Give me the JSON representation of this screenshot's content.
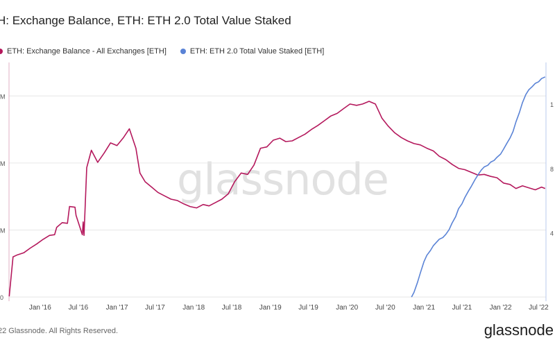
{
  "title": "H: Exchange Balance, ETH: ETH 2.0 Total Value Staked",
  "legend": [
    {
      "label": "ETH: Exchange Balance - All Exchanges [ETH]",
      "color": "#b4185c"
    },
    {
      "label": "ETH: ETH 2.0 Total Value Staked [ETH]",
      "color": "#5a83d6"
    }
  ],
  "watermark": "glassnode",
  "footer": {
    "copyright": "22 Glassnode. All Rights Reserved.",
    "logo": "glassnode"
  },
  "colors": {
    "exchange": "#b4185c",
    "staked": "#5a83d6",
    "grid": "#e6e6e6"
  },
  "chart_data": {
    "type": "line",
    "x_ticks": [
      "Jan '16",
      "Jul '16",
      "Jan '17",
      "Jul '17",
      "Jan '18",
      "Jul '18",
      "Jan '19",
      "Jul '19",
      "Jan '20",
      "Jul '20",
      "Jan '21",
      "Jul '21",
      "Jan '22",
      "Jul '22"
    ],
    "y_left_ticks": [
      "0",
      "M",
      "M",
      "M"
    ],
    "y_right_ticks": [
      "4",
      "8",
      "1"
    ],
    "grid": true,
    "legend_position": "top-left",
    "series": [
      {
        "name": "ETH: Exchange Balance - All Exchanges [ETH]",
        "x": [
          "2015-08-07",
          "2015-08-25",
          "2015-09-15",
          "2015-10-15",
          "2015-11-15",
          "2015-12-15",
          "2016-01-15",
          "2016-02-15",
          "2016-03-10",
          "2016-03-20",
          "2016-04-15",
          "2016-05-10",
          "2016-05-20",
          "2016-06-15",
          "2016-06-20",
          "2016-07-20",
          "2016-07-24",
          "2016-07-28",
          "2016-08-10",
          "2016-09-01",
          "2016-10-01",
          "2016-11-01",
          "2016-12-01",
          "2017-01-01",
          "2017-02-01",
          "2017-03-01",
          "2017-04-01",
          "2017-04-20",
          "2017-05-15",
          "2017-06-15",
          "2017-07-15",
          "2017-08-15",
          "2017-09-15",
          "2017-10-15",
          "2017-11-15",
          "2017-12-15",
          "2018-01-15",
          "2018-02-15",
          "2018-03-15",
          "2018-04-15",
          "2018-05-15",
          "2018-06-15",
          "2018-07-15",
          "2018-08-15",
          "2018-09-15",
          "2018-10-15",
          "2018-11-15",
          "2018-12-15",
          "2019-01-15",
          "2019-02-15",
          "2019-03-15",
          "2019-04-15",
          "2019-05-15",
          "2019-06-15",
          "2019-07-15",
          "2019-08-15",
          "2019-09-15",
          "2019-10-15",
          "2019-11-15",
          "2019-12-15",
          "2020-01-15",
          "2020-02-15",
          "2020-03-15",
          "2020-04-15",
          "2020-05-15",
          "2020-06-15",
          "2020-07-15",
          "2020-08-15",
          "2020-09-15",
          "2020-10-15",
          "2020-11-15",
          "2020-12-15",
          "2021-01-15",
          "2021-02-15",
          "2021-03-15",
          "2021-04-15",
          "2021-05-15",
          "2021-06-15",
          "2021-07-15",
          "2021-08-15",
          "2021-09-15",
          "2021-10-15",
          "2021-11-15",
          "2021-12-15",
          "2022-01-15",
          "2022-02-15",
          "2022-03-15",
          "2022-04-15",
          "2022-05-15",
          "2022-06-15",
          "2022-07-15",
          "2022-08-01"
        ],
        "y": [
          0.1,
          6.0,
          6.3,
          6.6,
          7.3,
          7.9,
          8.6,
          9.2,
          9.3,
          10.4,
          11.1,
          11.0,
          13.5,
          13.4,
          12.2,
          9.3,
          11.2,
          9.2,
          19.3,
          21.9,
          20.1,
          21.5,
          23.0,
          22.6,
          23.8,
          25.1,
          22.2,
          18.5,
          17.2,
          16.4,
          15.6,
          15.1,
          14.6,
          14.4,
          13.9,
          13.5,
          13.3,
          13.8,
          13.6,
          14.1,
          14.6,
          15.4,
          17.2,
          18.5,
          18.3,
          19.7,
          22.2,
          22.4,
          23.4,
          23.7,
          23.2,
          23.3,
          23.8,
          24.3,
          25.0,
          25.6,
          26.3,
          27.0,
          27.4,
          28.1,
          28.8,
          28.6,
          28.8,
          29.2,
          28.8,
          26.7,
          25.5,
          24.5,
          23.8,
          23.3,
          22.9,
          22.7,
          22.2,
          21.8,
          21.0,
          20.5,
          19.8,
          19.2,
          19.0,
          18.6,
          18.2,
          18.3,
          18.0,
          17.8,
          17.0,
          16.8,
          16.2,
          16.6,
          16.3,
          16.0,
          16.4,
          16.2
        ]
      },
      {
        "name": "ETH: ETH 2.0 Total Value Staked [ETH]",
        "x": [
          "2020-11-03",
          "2020-11-15",
          "2020-12-01",
          "2020-12-15",
          "2021-01-01",
          "2021-01-15",
          "2021-02-01",
          "2021-02-15",
          "2021-03-01",
          "2021-03-15",
          "2021-04-01",
          "2021-04-15",
          "2021-05-01",
          "2021-05-15",
          "2021-06-01",
          "2021-06-15",
          "2021-07-01",
          "2021-07-15",
          "2021-08-01",
          "2021-08-15",
          "2021-09-01",
          "2021-09-15",
          "2021-10-01",
          "2021-10-15",
          "2021-11-01",
          "2021-11-15",
          "2021-12-01",
          "2021-12-15",
          "2022-01-01",
          "2022-01-15",
          "2022-02-01",
          "2022-02-15",
          "2022-03-01",
          "2022-03-15",
          "2022-04-01",
          "2022-04-15",
          "2022-05-01",
          "2022-05-15",
          "2022-06-01",
          "2022-06-15",
          "2022-07-01",
          "2022-07-15",
          "2022-08-01"
        ],
        "y": [
          0.0,
          0.3,
          0.9,
          1.5,
          2.2,
          2.6,
          2.9,
          3.2,
          3.4,
          3.6,
          3.7,
          3.9,
          4.2,
          4.6,
          5.0,
          5.5,
          5.8,
          6.2,
          6.6,
          6.9,
          7.3,
          7.6,
          7.9,
          8.1,
          8.2,
          8.4,
          8.5,
          8.7,
          8.9,
          9.2,
          9.6,
          9.9,
          10.3,
          10.9,
          11.5,
          12.1,
          12.6,
          12.9,
          13.1,
          13.3,
          13.4,
          13.6,
          13.7
        ]
      }
    ]
  }
}
